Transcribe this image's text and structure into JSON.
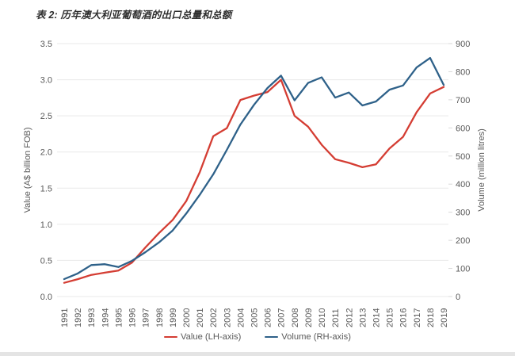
{
  "title": "表 2: 历年澳大利亚葡萄酒的出口总量和总额",
  "colors": {
    "value_line": "#d43d33",
    "volume_line": "#2e6189",
    "grid": "#e9e9e9",
    "tick_text": "#595959",
    "title_text": "#2f2f2f"
  },
  "chart_data": {
    "type": "line",
    "title": "表 2: 历年澳大利亚葡萄酒的出口总量和总额",
    "grid": true,
    "legend_position": "bottom",
    "categories": [
      "1991",
      "1992",
      "1993",
      "1994",
      "1995",
      "1996",
      "1997",
      "1998",
      "1999",
      "2000",
      "2001",
      "2002",
      "2003",
      "2004",
      "2005",
      "2006",
      "2007",
      "2008",
      "2009",
      "2010",
      "2011",
      "2012",
      "2013",
      "2014",
      "2015",
      "2016",
      "2017",
      "2018",
      "2019"
    ],
    "series": [
      {
        "name": "Value (LH-axis)",
        "axis": "left",
        "color": "#d43d33",
        "values": [
          0.19,
          0.24,
          0.3,
          0.33,
          0.36,
          0.47,
          0.68,
          0.88,
          1.06,
          1.32,
          1.72,
          2.22,
          2.33,
          2.72,
          2.78,
          2.83,
          3.0,
          2.5,
          2.35,
          2.1,
          1.9,
          1.85,
          1.79,
          1.83,
          2.05,
          2.21,
          2.55,
          2.81,
          2.9
        ]
      },
      {
        "name": "Volume (RH-axis)",
        "axis": "right",
        "color": "#2e6189",
        "values": [
          62,
          82,
          112,
          115,
          105,
          127,
          158,
          193,
          235,
          295,
          362,
          435,
          522,
          612,
          682,
          742,
          786,
          698,
          760,
          780,
          708,
          726,
          680,
          694,
          736,
          751,
          815,
          849,
          753
        ]
      }
    ],
    "left_axis": {
      "label": "Value (A$ billion FOB)",
      "min": 0.0,
      "max": 3.5,
      "step": 0.5,
      "tick_labels": [
        "0.0",
        "0.5",
        "1.0",
        "1.5",
        "2.0",
        "2.5",
        "3.0",
        "3.5"
      ]
    },
    "right_axis": {
      "label": "Volume (million litres)",
      "min": 0,
      "max": 900,
      "step": 100,
      "tick_labels": [
        "0",
        "100",
        "200",
        "300",
        "400",
        "500",
        "600",
        "700",
        "800",
        "900"
      ]
    }
  },
  "legend": {
    "value_label": "Value (LH-axis)",
    "volume_label": "Volume (RH-axis)"
  }
}
